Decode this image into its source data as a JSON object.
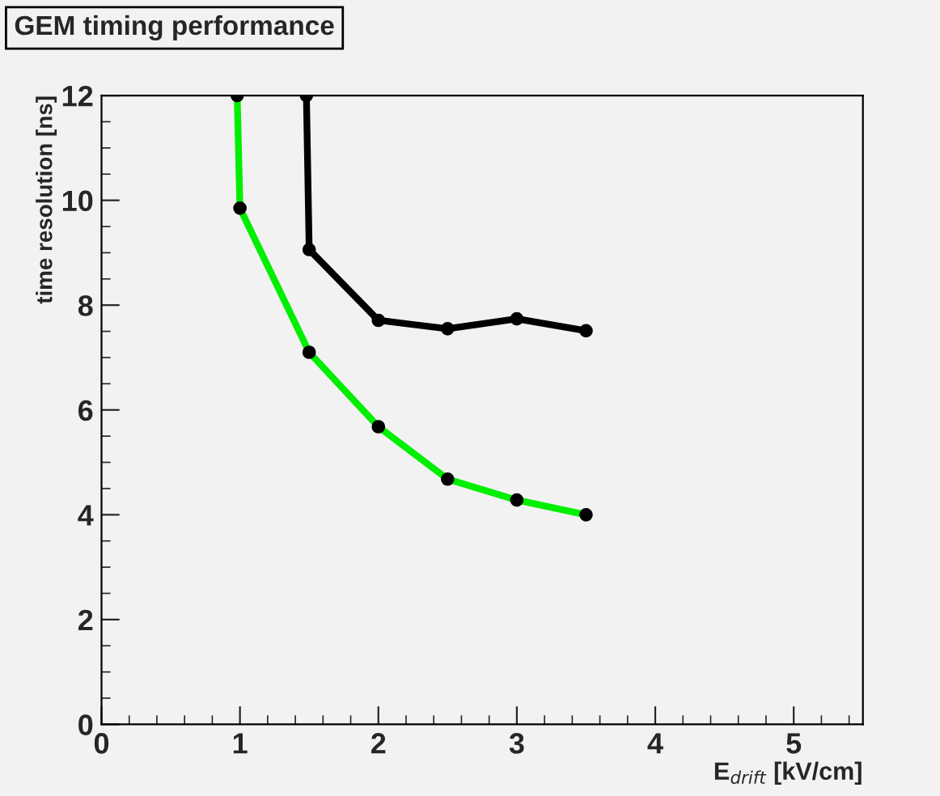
{
  "chart_data": {
    "type": "line",
    "title": "GEM timing performance",
    "xlabel": "E$_{drift}$ [kV/cm]",
    "ylabel": "time resolution [ns]",
    "series": [
      {
        "color": "#00ee00",
        "x": [
          0.98,
          1.0,
          1.5,
          2.0,
          2.5,
          3.0,
          3.5
        ],
        "values": [
          12,
          9.85,
          7.1,
          5.68,
          4.68,
          4.28,
          4.0
        ]
      },
      {
        "color": "#000000",
        "x": [
          1.48,
          1.5,
          2.0,
          2.5,
          3.0,
          3.5
        ],
        "values": [
          12,
          9.06,
          7.71,
          7.55,
          7.74,
          7.51
        ]
      }
    ],
    "xlim": [
      0,
      5.5
    ],
    "xticks": [
      0,
      1,
      2,
      3,
      4,
      5
    ],
    "ylim": [
      0,
      12
    ],
    "yticks": [
      0,
      2,
      4,
      6,
      8,
      10,
      12
    ],
    "marker": "circle",
    "line_style": "solid",
    "grid": false,
    "legend": false
  }
}
